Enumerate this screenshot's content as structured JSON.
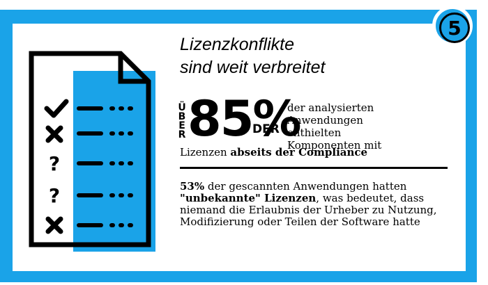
{
  "badge": {
    "number": "5"
  },
  "title": {
    "line1": "Lizenzkonflikte",
    "line2": "sind weit verbreitet"
  },
  "stat": {
    "prefix": "ÜBER",
    "value": "85%",
    "suffix": "DER",
    "desc_lines": [
      "der analysierten",
      "Anwendungen",
      "enthielten",
      "Komponenten mit"
    ],
    "last_plain": "Lizenzen ",
    "last_bold": "abseits der Compliance"
  },
  "finding": {
    "pct": "53%",
    "t1": " der gescannten Anwendungen hatten ",
    "bold": "\"unbekannte\" Lizenzen",
    "t2": ", was bedeutet, dass niemand die Erlaubnis der Urheber zu Nutzung, Modifizierung oder Teilen der Software hatte"
  },
  "checklist": {
    "marks": [
      "check",
      "x",
      "question",
      "question",
      "x"
    ],
    "icons": [
      "document-icon",
      "check-icon",
      "cross-icon",
      "question-icon",
      "question-icon",
      "cross-icon"
    ]
  },
  "colors": {
    "accent": "#1aa3e8",
    "ink": "#000000",
    "panel": "#ffffff"
  }
}
